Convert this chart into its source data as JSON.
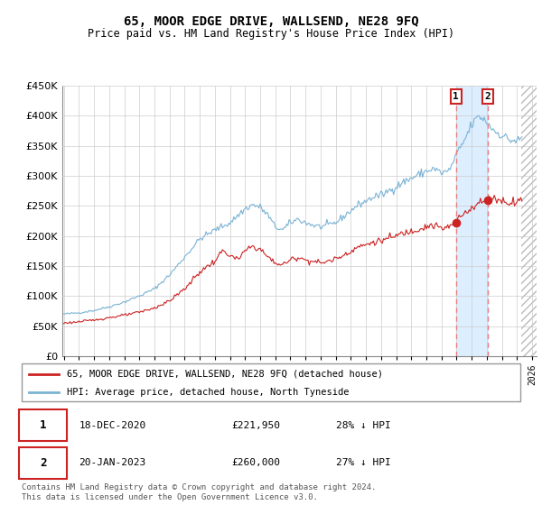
{
  "title": "65, MOOR EDGE DRIVE, WALLSEND, NE28 9FQ",
  "subtitle": "Price paid vs. HM Land Registry's House Price Index (HPI)",
  "ylim": [
    0,
    450000
  ],
  "yticks": [
    0,
    50000,
    100000,
    150000,
    200000,
    250000,
    300000,
    350000,
    400000,
    450000
  ],
  "xlim_start": 1994.9,
  "xlim_end": 2026.3,
  "hpi_color": "#7ab3d4",
  "price_color": "#cc2222",
  "vline_color": "#e88080",
  "band_color": "#ddeeff",
  "hatch_color": "#bbbbbb",
  "background_color": "#ffffff",
  "grid_color": "#cccccc",
  "legend_label_price": "65, MOOR EDGE DRIVE, WALLSEND, NE28 9FQ (detached house)",
  "legend_label_hpi": "HPI: Average price, detached house, North Tyneside",
  "transaction_1_date": "18-DEC-2020",
  "transaction_1_price": "£221,950",
  "transaction_1_note": "28% ↓ HPI",
  "transaction_1_x": 2020.96,
  "transaction_1_y": 221950,
  "transaction_2_date": "20-JAN-2023",
  "transaction_2_price": "£260,000",
  "transaction_2_note": "27% ↓ HPI",
  "transaction_2_x": 2023.05,
  "transaction_2_y": 260000,
  "future_start": 2025.3,
  "footer": "Contains HM Land Registry data © Crown copyright and database right 2024.\nThis data is licensed under the Open Government Licence v3.0."
}
